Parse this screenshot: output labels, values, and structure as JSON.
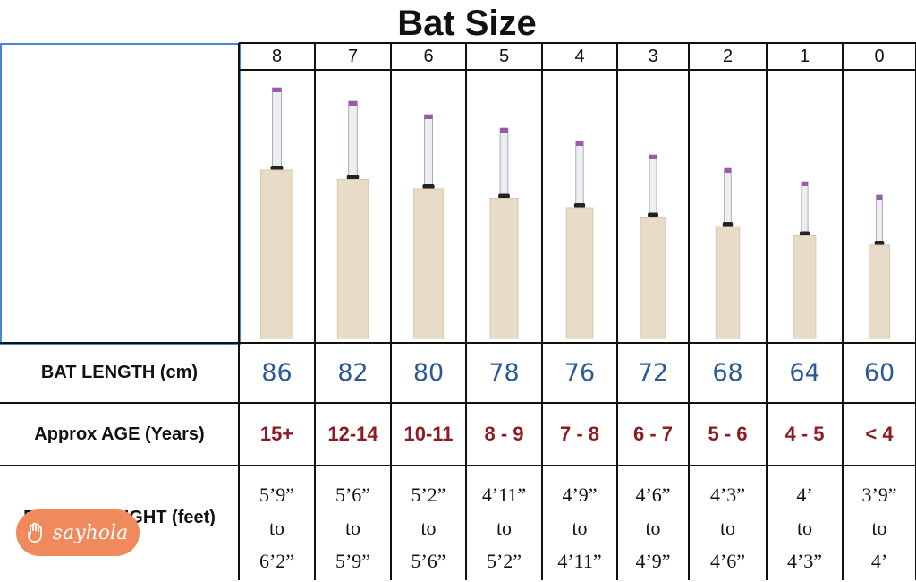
{
  "title": "Bat Size",
  "sizes": [
    8,
    7,
    6,
    5,
    4,
    3,
    2,
    1,
    0
  ],
  "rows": [
    {
      "label": "BAT LENGTH (cm)",
      "cells": [
        86,
        82,
        80,
        78,
        76,
        72,
        68,
        64,
        60
      ]
    },
    {
      "label": "Approx AGE (Years)",
      "cells": [
        "15+",
        "12-14",
        "10-11",
        "8 - 9",
        "7 - 8",
        "6 - 7",
        "5 - 6",
        "4 - 5",
        "< 4"
      ]
    },
    {
      "label": "PLAYER HEIGHT (feet)",
      "cells": [
        [
          "5’9”",
          "to",
          "6’2”"
        ],
        [
          "5’6”",
          "to",
          "5’9”"
        ],
        [
          "5’2”",
          "to",
          "5’6”"
        ],
        [
          "4’11”",
          "to",
          "5’2”"
        ],
        [
          "4’9”",
          "to",
          "4’11”"
        ],
        [
          "4’6”",
          "to",
          "4’9”"
        ],
        [
          "4’3”",
          "to",
          "4’6”"
        ],
        [
          "4’",
          "to",
          "4’3”"
        ],
        [
          "3’9”",
          "to",
          "4’"
        ]
      ]
    }
  ],
  "badge": "sayhola"
}
